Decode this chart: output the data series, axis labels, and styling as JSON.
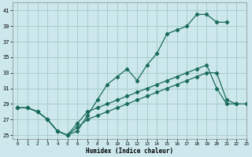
{
  "xlabel": "Humidex (Indice chaleur)",
  "ylabel": "",
  "bg_color": "#cce8ec",
  "grid_color": "#aacccc",
  "line_color": "#1a6b5a",
  "xlim": [
    -0.5,
    23
  ],
  "ylim": [
    24.5,
    42
  ],
  "yticks": [
    25,
    27,
    29,
    31,
    33,
    35,
    37,
    39,
    41
  ],
  "xticks": [
    0,
    1,
    2,
    3,
    4,
    5,
    6,
    7,
    8,
    9,
    10,
    11,
    12,
    13,
    14,
    15,
    16,
    17,
    18,
    19,
    20,
    21,
    22,
    23
  ],
  "line1_x": [
    0,
    1,
    2,
    3,
    4,
    5,
    6,
    7,
    8,
    9,
    10,
    11,
    12,
    13,
    14,
    15,
    16,
    17,
    18,
    19,
    20,
    21
  ],
  "line1_y": [
    28.5,
    28.5,
    28.0,
    27.0,
    25.5,
    25.0,
    25.5,
    27.5,
    29.5,
    31.5,
    32.5,
    33.5,
    32.0,
    34.0,
    35.5,
    38.0,
    38.5,
    39.0,
    40.5,
    40.5,
    39.5,
    39.5
  ],
  "line2_x": [
    0,
    1,
    2,
    3,
    4,
    5,
    6,
    7,
    8,
    9,
    10,
    11,
    12,
    13,
    14,
    15,
    16,
    17,
    18,
    19,
    20,
    21,
    22
  ],
  "line2_y": [
    28.5,
    28.5,
    28.0,
    27.0,
    25.5,
    25.0,
    26.5,
    28.0,
    28.5,
    29.0,
    29.5,
    30.0,
    30.5,
    31.0,
    31.5,
    32.0,
    32.5,
    33.0,
    33.5,
    34.0,
    31.0,
    29.0,
    29.0
  ],
  "line3_x": [
    0,
    1,
    2,
    3,
    4,
    5,
    6,
    7,
    8,
    9,
    10,
    11,
    12,
    13,
    14,
    15,
    16,
    17,
    18,
    19,
    20,
    21,
    22,
    23
  ],
  "line3_y": [
    28.5,
    28.5,
    28.0,
    27.0,
    25.5,
    25.0,
    26.0,
    27.0,
    27.5,
    28.0,
    28.5,
    29.0,
    29.5,
    30.0,
    30.5,
    31.0,
    31.5,
    32.0,
    32.5,
    33.0,
    33.0,
    29.5,
    29.0,
    29.0
  ]
}
